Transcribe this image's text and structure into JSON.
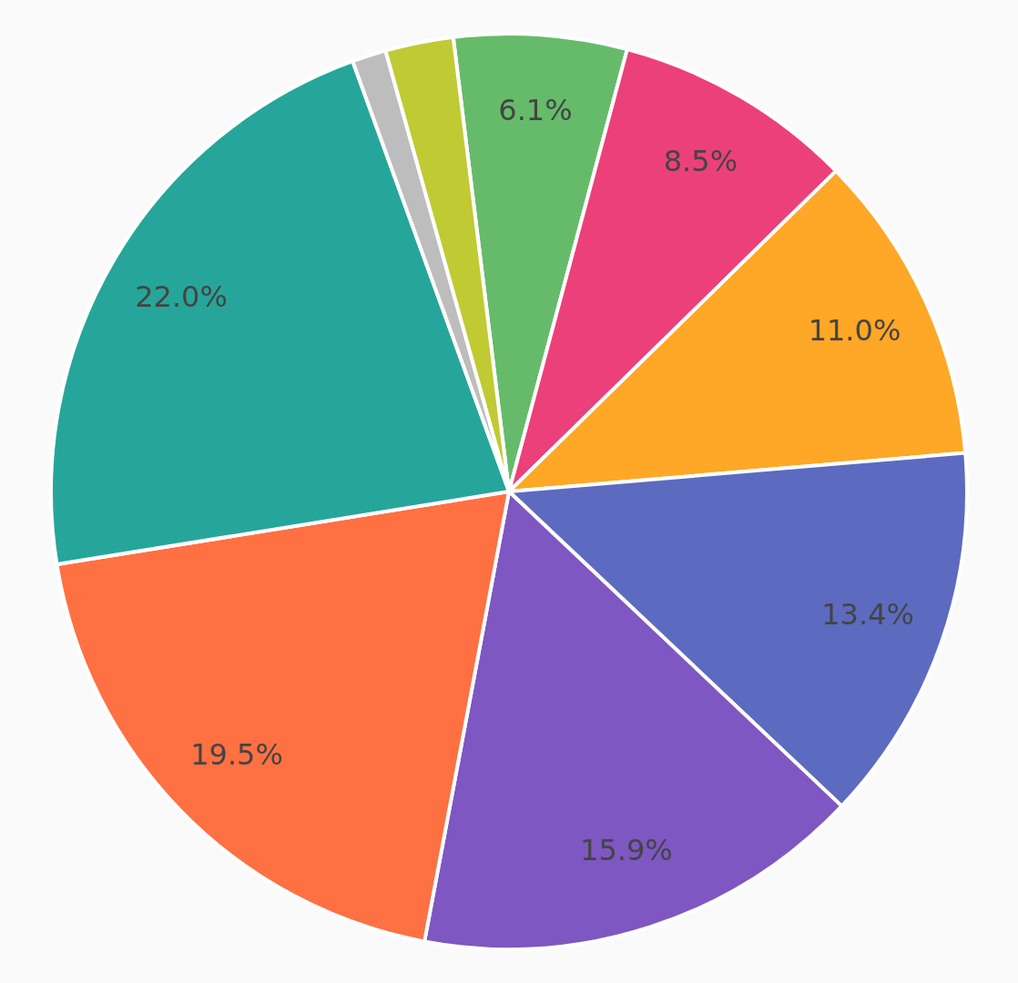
{
  "chart_data": {
    "type": "pie",
    "categories": [
      null,
      null,
      null,
      null,
      null,
      null,
      null,
      null,
      null
    ],
    "values": [
      6.1,
      8.5,
      11.0,
      13.4,
      15.9,
      19.5,
      22.0,
      1.2,
      2.4
    ],
    "colors": [
      "#66bb6a",
      "#ec407a",
      "#ffa726",
      "#5c6bc0",
      "#7e57c2",
      "#ff7043",
      "#26a69a",
      "#bdbdbd",
      "#c0ca33"
    ],
    "value_labels": [
      "6.1%",
      "8.5%",
      "11.0%",
      "13.4%",
      "15.9%",
      "19.5%",
      "22.0%",
      null,
      null
    ]
  }
}
